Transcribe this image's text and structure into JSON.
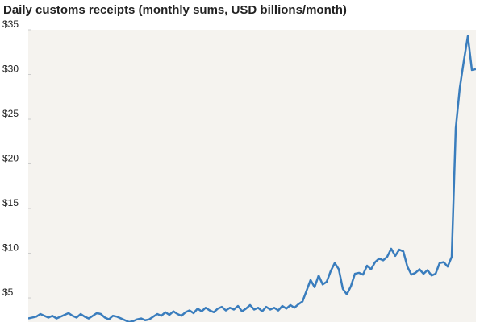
{
  "chart_data": {
    "type": "line",
    "title": "Daily customs receipts (monthly sums, USD billions/month)",
    "categories": [
      null,
      null,
      null,
      null,
      null,
      null,
      null,
      null,
      null,
      null,
      null,
      null,
      null,
      null,
      null,
      null,
      null,
      null,
      null,
      null,
      null,
      null,
      null,
      null,
      null,
      null,
      null,
      null,
      null,
      null,
      null,
      null,
      null,
      null,
      null,
      null,
      null,
      null,
      null,
      null,
      null,
      null,
      null,
      null,
      null,
      null,
      null,
      null,
      null,
      null,
      null,
      null,
      null,
      null,
      null,
      null,
      null,
      null,
      null,
      null,
      null,
      null,
      null,
      null,
      null,
      null,
      null,
      null,
      null,
      null,
      null,
      null,
      null,
      null,
      null,
      null,
      null,
      null,
      null,
      null,
      null,
      null,
      null,
      null,
      null,
      null,
      null,
      null,
      null,
      null,
      null,
      null,
      null,
      null,
      null,
      null,
      null,
      null,
      null,
      null,
      null,
      null,
      null,
      null,
      null,
      null,
      null,
      null,
      null,
      null,
      null,
      null
    ],
    "values": [
      2.7,
      2.8,
      2.9,
      3.2,
      3.0,
      2.8,
      3.0,
      2.7,
      2.9,
      3.1,
      3.3,
      3.0,
      2.8,
      3.2,
      2.9,
      2.7,
      3.0,
      3.3,
      3.2,
      2.8,
      2.6,
      3.0,
      2.9,
      2.7,
      2.5,
      2.3,
      2.4,
      2.6,
      2.7,
      2.5,
      2.6,
      2.9,
      3.2,
      3.0,
      3.4,
      3.1,
      3.5,
      3.2,
      3.0,
      3.4,
      3.6,
      3.3,
      3.8,
      3.5,
      3.9,
      3.6,
      3.4,
      3.8,
      4.0,
      3.6,
      3.9,
      3.7,
      4.1,
      3.5,
      3.8,
      4.2,
      3.7,
      3.9,
      3.5,
      4.0,
      3.7,
      3.9,
      3.6,
      4.1,
      3.8,
      4.2,
      3.9,
      4.3,
      4.6,
      5.8,
      7.0,
      6.2,
      7.5,
      6.5,
      6.8,
      8.0,
      8.9,
      8.2,
      6.0,
      5.4,
      6.3,
      7.7,
      7.8,
      7.6,
      8.6,
      8.2,
      9.0,
      9.4,
      9.2,
      9.6,
      10.5,
      9.7,
      10.4,
      10.2,
      8.5,
      7.6,
      7.8,
      8.2,
      7.7,
      8.1,
      7.5,
      7.7,
      8.9,
      9.0,
      8.5,
      9.6,
      24.0,
      28.5,
      31.5,
      34.3,
      30.5,
      30.6
    ],
    "color": "#3a7dbd",
    "ylim": [
      2.3,
      35
    ],
    "yticks": [
      {
        "value": 5,
        "label": "$5"
      },
      {
        "value": 10,
        "label": "$10"
      },
      {
        "value": 15,
        "label": "$15"
      },
      {
        "value": 20,
        "label": "$20"
      },
      {
        "value": 25,
        "label": "$25"
      },
      {
        "value": 30,
        "label": "$30"
      },
      {
        "value": 35,
        "label": "$35"
      }
    ],
    "grid": false
  }
}
